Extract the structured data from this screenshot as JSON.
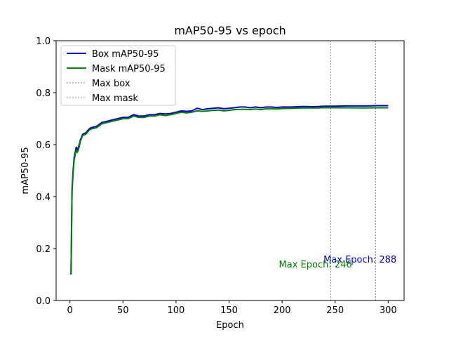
{
  "chart_data": {
    "type": "line",
    "title": "mAP50-95 vs epoch",
    "xlabel": "Epoch",
    "ylabel": "mAP50-95",
    "xlim": [
      -13,
      315
    ],
    "ylim": [
      0,
      1.0
    ],
    "xticks": [
      0,
      50,
      100,
      150,
      200,
      250,
      300
    ],
    "yticks": [
      0.0,
      0.2,
      0.4,
      0.6,
      0.8,
      1.0
    ],
    "xtick_labels": [
      "0",
      "50",
      "100",
      "150",
      "200",
      "250",
      "300"
    ],
    "ytick_labels": [
      "0.0",
      "0.2",
      "0.4",
      "0.6",
      "0.8",
      "1.0"
    ],
    "grid": false,
    "legend_position": "upper-left",
    "series": [
      {
        "name": "Box mAP50-95",
        "color": "#0000cc",
        "x": [
          1,
          2,
          3,
          4,
          5,
          6,
          7,
          8,
          10,
          12,
          15,
          18,
          20,
          25,
          30,
          35,
          40,
          45,
          50,
          55,
          60,
          65,
          70,
          75,
          80,
          85,
          90,
          95,
          100,
          105,
          110,
          115,
          120,
          125,
          130,
          135,
          140,
          145,
          150,
          155,
          160,
          165,
          170,
          175,
          180,
          185,
          190,
          195,
          200,
          210,
          220,
          230,
          240,
          250,
          260,
          270,
          280,
          290,
          300
        ],
        "y": [
          0.1,
          0.43,
          0.5,
          0.55,
          0.57,
          0.59,
          0.58,
          0.59,
          0.62,
          0.64,
          0.645,
          0.66,
          0.665,
          0.67,
          0.685,
          0.69,
          0.695,
          0.7,
          0.705,
          0.705,
          0.715,
          0.71,
          0.71,
          0.715,
          0.715,
          0.72,
          0.718,
          0.72,
          0.725,
          0.73,
          0.728,
          0.73,
          0.74,
          0.735,
          0.738,
          0.74,
          0.742,
          0.738,
          0.74,
          0.742,
          0.745,
          0.745,
          0.742,
          0.745,
          0.742,
          0.745,
          0.745,
          0.743,
          0.745,
          0.745,
          0.747,
          0.746,
          0.748,
          0.748,
          0.749,
          0.749,
          0.749,
          0.75,
          0.75
        ]
      },
      {
        "name": "Mask mAP50-95",
        "color": "#007f00",
        "x": [
          1,
          2,
          3,
          4,
          5,
          6,
          7,
          8,
          10,
          12,
          15,
          18,
          20,
          25,
          30,
          35,
          40,
          45,
          50,
          55,
          60,
          65,
          70,
          75,
          80,
          85,
          90,
          95,
          100,
          105,
          110,
          115,
          120,
          125,
          130,
          135,
          140,
          145,
          150,
          155,
          160,
          165,
          170,
          175,
          180,
          185,
          190,
          195,
          200,
          210,
          220,
          230,
          240,
          250,
          260,
          270,
          280,
          290,
          300
        ],
        "y": [
          0.1,
          0.42,
          0.49,
          0.54,
          0.56,
          0.58,
          0.57,
          0.58,
          0.615,
          0.635,
          0.64,
          0.655,
          0.66,
          0.665,
          0.68,
          0.685,
          0.69,
          0.695,
          0.7,
          0.7,
          0.71,
          0.705,
          0.705,
          0.71,
          0.71,
          0.715,
          0.712,
          0.715,
          0.72,
          0.725,
          0.722,
          0.725,
          0.73,
          0.728,
          0.73,
          0.732,
          0.733,
          0.73,
          0.732,
          0.735,
          0.736,
          0.736,
          0.735,
          0.737,
          0.735,
          0.738,
          0.738,
          0.737,
          0.739,
          0.74,
          0.741,
          0.741,
          0.742,
          0.742,
          0.742,
          0.741,
          0.741,
          0.742,
          0.742
        ]
      }
    ],
    "vlines": [
      {
        "name": "Max box",
        "x": 288,
        "color": "#0000cc"
      },
      {
        "name": "Max mask",
        "x": 246,
        "color": "#007f00"
      }
    ],
    "annotations": [
      {
        "text": "Max Epoch: 288",
        "x": 239,
        "y": 0.16,
        "color": "#0000cc"
      },
      {
        "text": "Max Epoch: 246",
        "x": 197,
        "y": 0.14,
        "color": "#007f00"
      }
    ]
  }
}
